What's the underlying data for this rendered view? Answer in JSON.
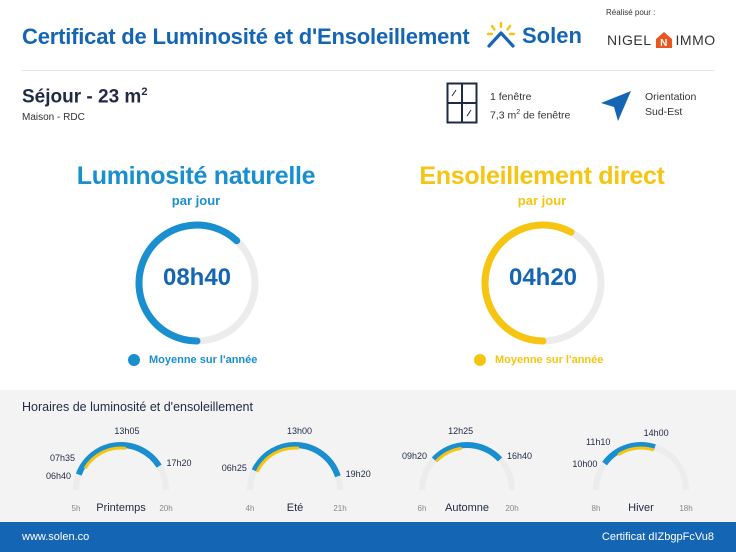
{
  "header": {
    "title": "Certificat de Luminosité et d'Ensoleillement",
    "brand": "Solen",
    "made_by_label": "Réalisé pour :",
    "partner_left": "NIGEL",
    "partner_right": "IMMO"
  },
  "room": {
    "name": "Séjour - 23 m",
    "name_sup": "2",
    "type": "Maison - RDC"
  },
  "windows": {
    "count": "1 fenêtre",
    "area": "7,3 m",
    "area_sup": "2",
    "area_suffix": " de fenêtre"
  },
  "orientation": {
    "label": "Orientation",
    "value": "Sud-Est"
  },
  "luminosity": {
    "title": "Luminosité naturelle",
    "per": "par jour",
    "value": "08h40",
    "legend": "Moyenne sur l'année",
    "fraction": 0.62,
    "color": "#1a8fd0"
  },
  "sunshine": {
    "title": "Ensoleillement direct",
    "per": "par jour",
    "value": "04h20",
    "legend": "Moyenne sur l'année",
    "fraction": 0.58,
    "color": "#f5c511"
  },
  "hours": {
    "title": "Horaires de luminosité et d'ensoleillement",
    "seasons": [
      {
        "name": "Printemps",
        "axis_min": "5h",
        "axis_max": "20h",
        "min_h": 5,
        "max_h": 20,
        "lum_start": "06h40",
        "lum_end": "17h20",
        "sun_start": "07h35",
        "sun_end": "13h05",
        "lum_start_h": 6.67,
        "lum_end_h": 17.33,
        "sun_start_h": 7.58,
        "sun_end_h": 13.08
      },
      {
        "name": "Eté",
        "axis_min": "4h",
        "axis_max": "21h",
        "min_h": 4,
        "max_h": 21,
        "lum_start": "06h25",
        "lum_end": "19h20",
        "sun_start": "06h25",
        "sun_end": "13h00",
        "lum_start_h": 6.42,
        "lum_end_h": 19.33,
        "sun_start_h": 6.42,
        "sun_end_h": 13.0
      },
      {
        "name": "Automne",
        "axis_min": "6h",
        "axis_max": "20h",
        "min_h": 6,
        "max_h": 20,
        "lum_start": "09h20",
        "lum_end": "16h40",
        "sun_start": "09h20",
        "sun_end": "12h25",
        "lum_start_h": 9.33,
        "lum_end_h": 16.67,
        "sun_start_h": 9.33,
        "sun_end_h": 12.42
      },
      {
        "name": "Hiver",
        "axis_min": "8h",
        "axis_max": "18h",
        "min_h": 8,
        "max_h": 18,
        "lum_start": "10h00",
        "lum_end": "14h00",
        "sun_start": "11h10",
        "sun_end": "14h00",
        "lum_start_h": 10.0,
        "lum_end_h": 14.0,
        "sun_start_h": 11.17,
        "sun_end_h": 14.0
      }
    ]
  },
  "footer": {
    "url": "www.solen.co",
    "certificate": "Certificat dIZbgpFcVu8"
  },
  "colors": {
    "primary": "#1565b5",
    "luminosity": "#1a8fd0",
    "sunshine": "#f5c511",
    "track": "#ececec"
  }
}
